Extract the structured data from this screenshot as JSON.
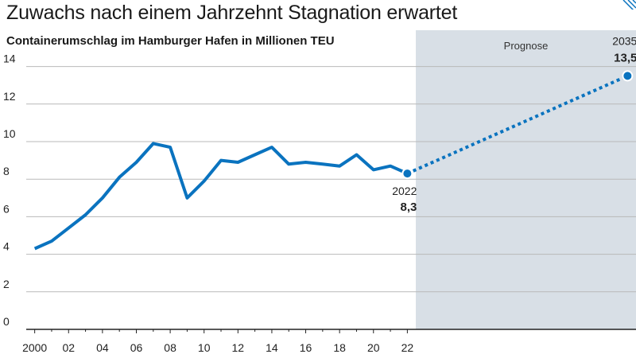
{
  "title": "Zuwachs nach einem Jahrzehnt Stagnation erwartet",
  "subtitle": "Containerumschlag im Hamburger Hafen in Millionen TEU",
  "forecast_label": "Prognose",
  "colors": {
    "line": "#0a73bf",
    "forecast_bg": "#d8dfe6",
    "grid": "#b9b9b9",
    "axis": "#222222",
    "corner": "#0a73bf"
  },
  "chart_data": {
    "type": "line",
    "ylim": [
      0,
      15
    ],
    "y_ticks": [
      0,
      2,
      4,
      6,
      8,
      10,
      12,
      14
    ],
    "y_tick_labels": [
      "0",
      "2",
      "4",
      "6",
      "8",
      "10",
      "12",
      "14"
    ],
    "x_ticks": [
      2000,
      2002,
      2004,
      2006,
      2008,
      2010,
      2012,
      2014,
      2016,
      2018,
      2020,
      2022
    ],
    "x_tick_labels": [
      "2000",
      "02",
      "04",
      "06",
      "08",
      "10",
      "12",
      "14",
      "16",
      "18",
      "20",
      "22"
    ],
    "xlim": [
      1999.5,
      2035.5
    ],
    "forecast_start": 2022.5,
    "series": [
      {
        "style": "solid",
        "x": [
          2000,
          2001,
          2002,
          2003,
          2004,
          2005,
          2006,
          2007,
          2008,
          2009,
          2010,
          2011,
          2012,
          2013,
          2014,
          2015,
          2016,
          2017,
          2018,
          2019,
          2020,
          2021,
          2022
        ],
        "values": [
          4.3,
          4.7,
          5.4,
          6.1,
          7.0,
          8.1,
          8.9,
          9.9,
          9.7,
          7.0,
          7.9,
          9.0,
          8.9,
          9.3,
          9.7,
          8.8,
          8.9,
          8.8,
          8.7,
          9.3,
          8.5,
          8.7,
          8.3
        ]
      },
      {
        "style": "dotted",
        "x": [
          2022,
          2035
        ],
        "values": [
          8.3,
          13.5
        ]
      }
    ],
    "annotations": [
      {
        "x": 2022,
        "value": 8.3,
        "year_label": "2022",
        "value_label": "8,3"
      },
      {
        "x": 2035,
        "value": 13.5,
        "year_label": "2035",
        "value_label": "13,5"
      }
    ]
  }
}
